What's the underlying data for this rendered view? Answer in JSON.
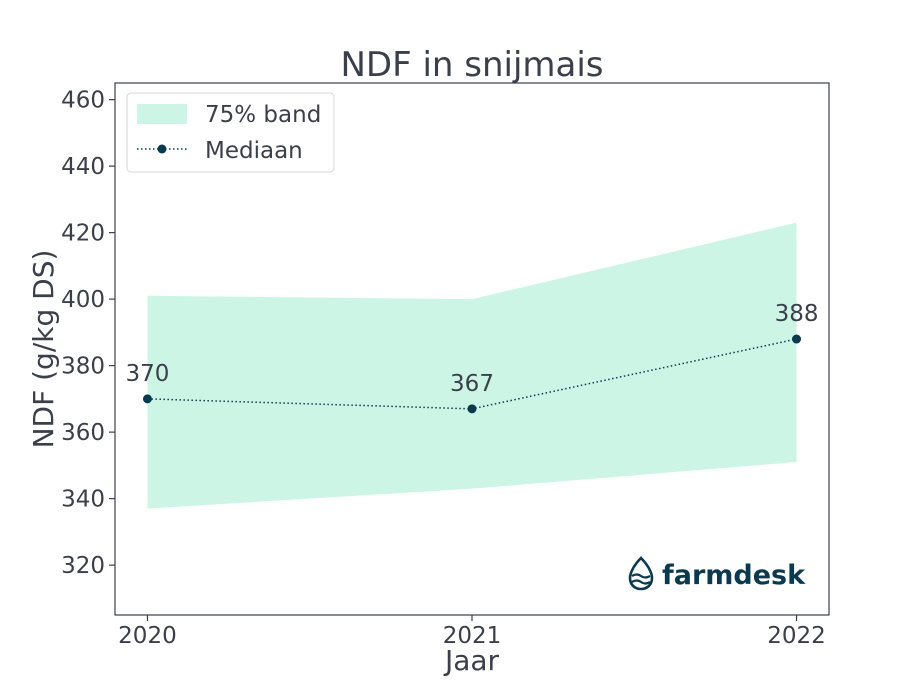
{
  "chart_data": {
    "type": "line",
    "title": "NDF in snijmais",
    "xlabel": "Jaar",
    "ylabel": "NDF (g/kg DS)",
    "categories": [
      "2020",
      "2021",
      "2022"
    ],
    "xlim": [
      2019.9,
      2022.1
    ],
    "ylim": [
      305,
      465
    ],
    "yticks": [
      320,
      340,
      360,
      380,
      400,
      420,
      440,
      460
    ],
    "grid": false,
    "legend_position": "top-left",
    "series": [
      {
        "name": "Mediaan",
        "style": "dotted line with circle markers",
        "color": "#0b3a4f",
        "values": [
          370,
          367,
          388
        ],
        "labels": [
          "370",
          "367",
          "388"
        ]
      }
    ],
    "band": {
      "name": "75% band",
      "color": "#cdf5e6",
      "lower": [
        337,
        343,
        351
      ],
      "upper": [
        401,
        400,
        423
      ]
    }
  },
  "logo": {
    "text": "farmdesk",
    "color": "#0b3a4f"
  }
}
